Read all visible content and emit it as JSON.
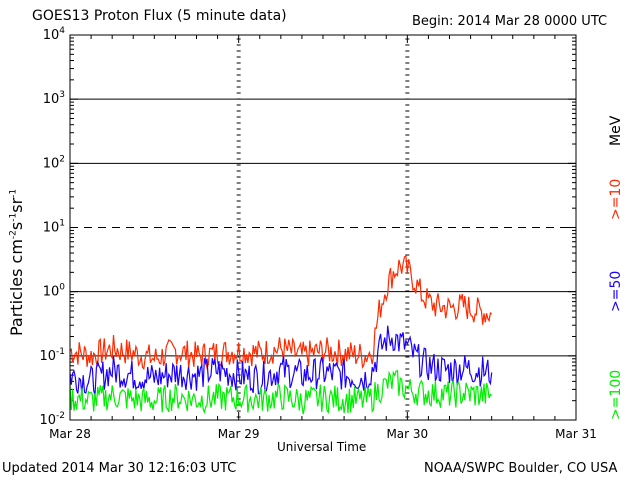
{
  "header": {
    "title": "GOES13 Proton Flux (5 minute data)",
    "begin": "Begin: 2014 Mar 28 0000 UTC"
  },
  "footer": {
    "updated": "Updated 2014 Mar 30 12:16:03 UTC",
    "source": "NOAA/SWPC Boulder, CO USA"
  },
  "legend": {
    "unit": "MeV",
    "items": [
      {
        "label": ">=10",
        "color": "#ff2a00"
      },
      {
        "label": ">=50",
        "color": "#1a00ff"
      },
      {
        "label": ">=100",
        "color": "#00ee00"
      }
    ]
  },
  "chart_data": {
    "type": "line",
    "title": "GOES13 Proton Flux (5 minute data)",
    "xlabel": "Universal Time",
    "ylabel_base": "Particles cm",
    "ylabel_sups": [
      "-2",
      "-1",
      "-1"
    ],
    "ylabel_parts": [
      "s",
      "sr"
    ],
    "yscale": "log",
    "ylim": [
      0.01,
      10000
    ],
    "yticks": [
      {
        "value": 0.01,
        "base": "10",
        "exp": "-2"
      },
      {
        "value": 0.1,
        "base": "10",
        "exp": "-1"
      },
      {
        "value": 1,
        "base": "10",
        "exp": "0"
      },
      {
        "value": 10,
        "base": "10",
        "exp": "1"
      },
      {
        "value": 100,
        "base": "10",
        "exp": "2"
      },
      {
        "value": 1000,
        "base": "10",
        "exp": "3"
      },
      {
        "value": 10000,
        "base": "10",
        "exp": "4"
      }
    ],
    "xlim": [
      "2014-03-28 00:00",
      "2014-03-31 00:00"
    ],
    "xticks": [
      "Mar 28",
      "Mar 29",
      "Mar 30",
      "Mar 31"
    ],
    "threshold_lines": [
      0.1,
      1,
      100,
      1000
    ],
    "dashed_lines": [
      10
    ],
    "series": [
      {
        "name": ">=10 MeV",
        "color": "#ff2a00",
        "x": [
          "2014-03-28 00:00",
          "2014-03-28 03:00",
          "2014-03-28 06:00",
          "2014-03-28 09:00",
          "2014-03-28 12:00",
          "2014-03-28 15:00",
          "2014-03-28 18:00",
          "2014-03-28 21:00",
          "2014-03-29 00:00",
          "2014-03-29 03:00",
          "2014-03-29 06:00",
          "2014-03-29 09:00",
          "2014-03-29 12:00",
          "2014-03-29 15:00",
          "2014-03-29 18:00",
          "2014-03-29 19:00",
          "2014-03-29 20:00",
          "2014-03-29 21:00",
          "2014-03-29 22:00",
          "2014-03-29 23:00",
          "2014-03-30 00:00",
          "2014-03-30 01:00",
          "2014-03-30 02:00",
          "2014-03-30 03:00",
          "2014-03-30 04:00",
          "2014-03-30 06:00",
          "2014-03-30 08:00",
          "2014-03-30 10:00",
          "2014-03-30 12:00"
        ],
        "y": [
          0.12,
          0.1,
          0.13,
          0.11,
          0.09,
          0.12,
          0.1,
          0.11,
          0.12,
          0.11,
          0.13,
          0.1,
          0.12,
          0.11,
          0.1,
          0.12,
          0.5,
          1.2,
          2.0,
          2.6,
          2.2,
          1.5,
          0.9,
          0.7,
          0.6,
          0.55,
          0.6,
          0.5,
          0.45
        ]
      },
      {
        "name": ">=50 MeV",
        "color": "#1a00ff",
        "x": [
          "2014-03-28 00:00",
          "2014-03-28 03:00",
          "2014-03-28 06:00",
          "2014-03-28 09:00",
          "2014-03-28 12:00",
          "2014-03-28 15:00",
          "2014-03-28 18:00",
          "2014-03-28 21:00",
          "2014-03-29 00:00",
          "2014-03-29 03:00",
          "2014-03-29 06:00",
          "2014-03-29 09:00",
          "2014-03-29 12:00",
          "2014-03-29 15:00",
          "2014-03-29 18:00",
          "2014-03-29 19:00",
          "2014-03-29 20:00",
          "2014-03-29 21:00",
          "2014-03-29 22:00",
          "2014-03-29 23:00",
          "2014-03-30 00:00",
          "2014-03-30 01:00",
          "2014-03-30 02:00",
          "2014-03-30 03:00",
          "2014-03-30 04:00",
          "2014-03-30 06:00",
          "2014-03-30 08:00",
          "2014-03-30 10:00",
          "2014-03-30 12:00"
        ],
        "y": [
          0.05,
          0.04,
          0.06,
          0.05,
          0.045,
          0.055,
          0.05,
          0.06,
          0.05,
          0.045,
          0.06,
          0.05,
          0.055,
          0.05,
          0.045,
          0.06,
          0.12,
          0.18,
          0.2,
          0.16,
          0.14,
          0.1,
          0.08,
          0.07,
          0.065,
          0.06,
          0.065,
          0.06,
          0.055
        ]
      },
      {
        "name": ">=100 MeV",
        "color": "#00ee00",
        "x": [
          "2014-03-28 00:00",
          "2014-03-28 03:00",
          "2014-03-28 06:00",
          "2014-03-28 09:00",
          "2014-03-28 12:00",
          "2014-03-28 15:00",
          "2014-03-28 18:00",
          "2014-03-28 21:00",
          "2014-03-29 00:00",
          "2014-03-29 03:00",
          "2014-03-29 06:00",
          "2014-03-29 09:00",
          "2014-03-29 12:00",
          "2014-03-29 15:00",
          "2014-03-29 18:00",
          "2014-03-29 19:00",
          "2014-03-29 20:00",
          "2014-03-29 21:00",
          "2014-03-29 22:00",
          "2014-03-29 23:00",
          "2014-03-30 00:00",
          "2014-03-30 01:00",
          "2014-03-30 02:00",
          "2014-03-30 03:00",
          "2014-03-30 04:00",
          "2014-03-30 06:00",
          "2014-03-30 08:00",
          "2014-03-30 10:00",
          "2014-03-30 12:00"
        ],
        "y": [
          0.022,
          0.02,
          0.024,
          0.021,
          0.02,
          0.023,
          0.021,
          0.022,
          0.022,
          0.021,
          0.023,
          0.02,
          0.022,
          0.021,
          0.02,
          0.022,
          0.03,
          0.035,
          0.04,
          0.035,
          0.03,
          0.028,
          0.027,
          0.026,
          0.026,
          0.025,
          0.026,
          0.025,
          0.024
        ]
      }
    ]
  }
}
